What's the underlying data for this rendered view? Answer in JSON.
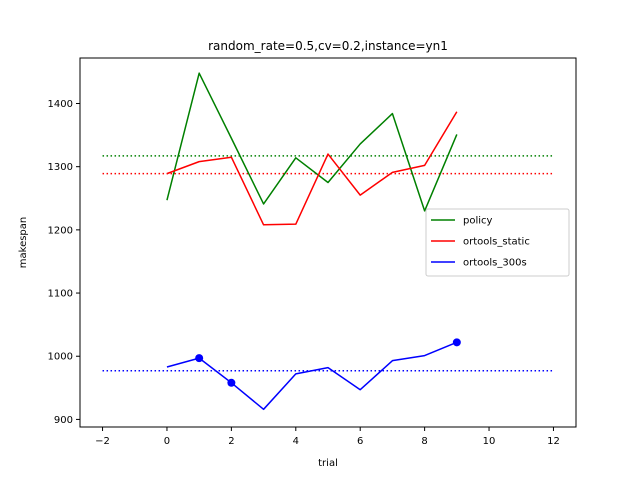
{
  "chart_data": {
    "type": "line",
    "title": "random_rate=0.5,cv=0.2,instance=yn1",
    "xlabel": "trial",
    "ylabel": "makespan",
    "xlim": [
      -2.7,
      12.7
    ],
    "ylim": [
      888,
      1472
    ],
    "xticks": [
      -2,
      0,
      2,
      4,
      6,
      8,
      10,
      12
    ],
    "xtick_labels": [
      "−2",
      "0",
      "2",
      "4",
      "6",
      "8",
      "10",
      "12"
    ],
    "yticks": [
      900,
      1000,
      1100,
      1200,
      1300,
      1400
    ],
    "ytick_labels": [
      "900",
      "1000",
      "1100",
      "1200",
      "1300",
      "1400"
    ],
    "grid": false,
    "legend_position": "center-right",
    "series": [
      {
        "name": "policy",
        "color": "#008000",
        "x": [
          0,
          1,
          2,
          3,
          4,
          5,
          6,
          7,
          8,
          9
        ],
        "values": [
          1247,
          1448,
          1345,
          1241,
          1314,
          1275,
          1336,
          1384,
          1230,
          1351
        ]
      },
      {
        "name": "ortools_static",
        "color": "#ff0000",
        "x": [
          0,
          1,
          2,
          3,
          4,
          5,
          6,
          7,
          8,
          9
        ],
        "values": [
          1289,
          1308,
          1315,
          1208,
          1209,
          1320,
          1255,
          1291,
          1302,
          1387
        ]
      },
      {
        "name": "ortools_300s",
        "color": "#0000ff",
        "x": [
          0,
          1,
          2,
          3,
          4,
          5,
          6,
          7,
          8,
          9
        ],
        "values": [
          983,
          997,
          958,
          916,
          972,
          982,
          947,
          993,
          1001,
          1022
        ],
        "markers_x": [
          1,
          2,
          9
        ],
        "markers_y": [
          997,
          958,
          1022
        ]
      }
    ],
    "reference_lines": [
      {
        "series": "policy",
        "color": "#008000",
        "y": 1317,
        "x_range": [
          -2,
          12
        ],
        "style": "dotted"
      },
      {
        "series": "ortools_static",
        "color": "#ff0000",
        "y": 1289,
        "x_range": [
          -2,
          12
        ],
        "style": "dotted"
      },
      {
        "series": "ortools_300s",
        "color": "#0000ff",
        "y": 977,
        "x_range": [
          -2,
          12
        ],
        "style": "dotted"
      }
    ]
  }
}
